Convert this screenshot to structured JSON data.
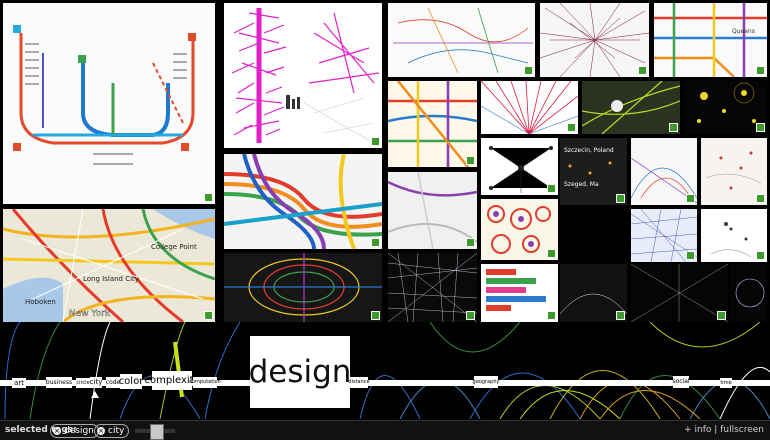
{
  "main_tag": "design",
  "tags": [
    {
      "label": "art",
      "size": 7
    },
    {
      "label": "business",
      "size": 7
    },
    {
      "label": "circle",
      "size": 6
    },
    {
      "label": "city",
      "size": 8
    },
    {
      "label": "code",
      "size": 7
    },
    {
      "label": "color",
      "size": 11
    },
    {
      "label": "complexity",
      "size": 12
    },
    {
      "label": "computation",
      "size": 6
    },
    {
      "label": "distance",
      "size": 6
    },
    {
      "label": "geography",
      "size": 7
    },
    {
      "label": "social",
      "size": 8
    },
    {
      "label": "time",
      "size": 6
    }
  ],
  "map_labels": {
    "new_york": "New York",
    "long_island": "Long Island City",
    "college_point": "College Point",
    "hoboken": "Hoboken",
    "queens": "Queens",
    "szczecin": "Szczecin, Poland",
    "szeged": "Szeged, Ma"
  },
  "footer": {
    "selected_label": "selected tags:",
    "chips": [
      "design",
      "city"
    ],
    "info": "info",
    "separator": "|",
    "fullscreen": "fullscreen"
  },
  "colors": {
    "accent": "#3e9a2c",
    "magenta": "#e020c8",
    "background": "#000000"
  }
}
